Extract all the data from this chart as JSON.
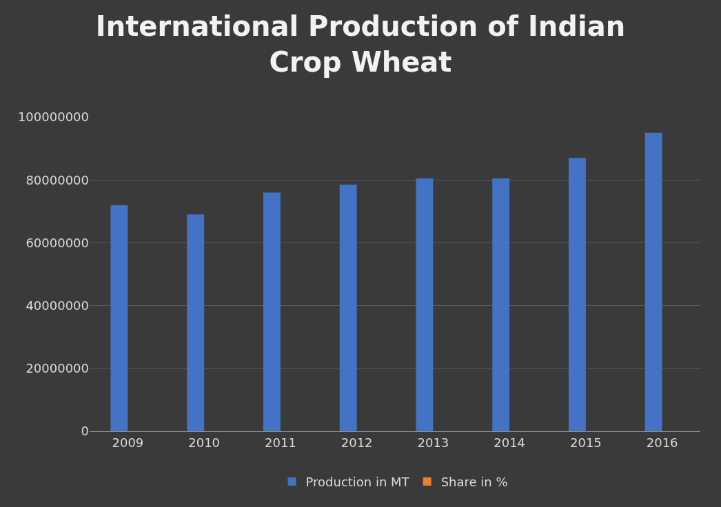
{
  "chart_data": {
    "type": "bar",
    "title": "International Production of Indian Crop Wheat",
    "categories": [
      "2009",
      "2010",
      "2011",
      "2012",
      "2013",
      "2014",
      "2015",
      "2016"
    ],
    "series": [
      {
        "name": "Production in MT",
        "color": "#4472c4",
        "values": [
          72000000,
          69000000,
          76000000,
          78500000,
          80500000,
          80500000,
          87000000,
          95000000
        ]
      },
      {
        "name": "Share in %",
        "color": "#ed7d31",
        "values": [
          null,
          null,
          null,
          null,
          null,
          null,
          null,
          null
        ]
      }
    ],
    "ylim": [
      0,
      100000000
    ],
    "yticks": [
      0,
      20000000,
      40000000,
      60000000,
      80000000,
      100000000
    ],
    "grid": "y",
    "legend": "bottom"
  }
}
